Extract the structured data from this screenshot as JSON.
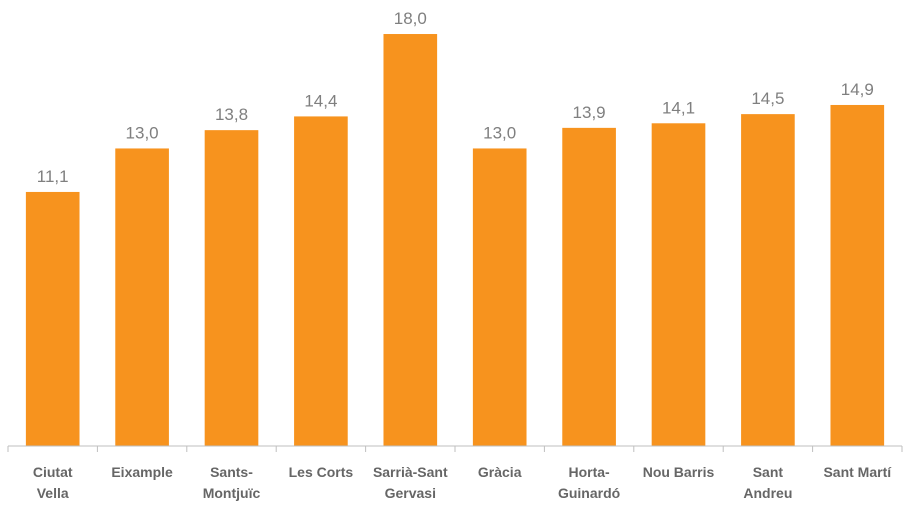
{
  "chart_data": {
    "type": "bar",
    "categories": [
      [
        "Ciutat",
        "Vella"
      ],
      [
        "Eixample"
      ],
      [
        "Sants-",
        "Montjuïc"
      ],
      [
        "Les Corts"
      ],
      [
        "Sarrià-Sant",
        "Gervasi"
      ],
      [
        "Gràcia"
      ],
      [
        "Horta-",
        "Guinardó"
      ],
      [
        "Nou Barris"
      ],
      [
        "Sant",
        "Andreu"
      ],
      [
        "Sant Martí"
      ]
    ],
    "values": [
      11.1,
      13.0,
      13.8,
      14.4,
      18.0,
      13.0,
      13.9,
      14.1,
      14.5,
      14.9
    ],
    "value_labels": [
      "11,1",
      "13,0",
      "13,8",
      "14,4",
      "18,0",
      "13,0",
      "13,9",
      "14,1",
      "14,5",
      "14,9"
    ],
    "title": "",
    "xlabel": "",
    "ylabel": "",
    "ylim": [
      0,
      18.7
    ],
    "grid": false,
    "legend": "none",
    "bar_color": "#f7931e",
    "axis_color": "#bfbfbf"
  }
}
